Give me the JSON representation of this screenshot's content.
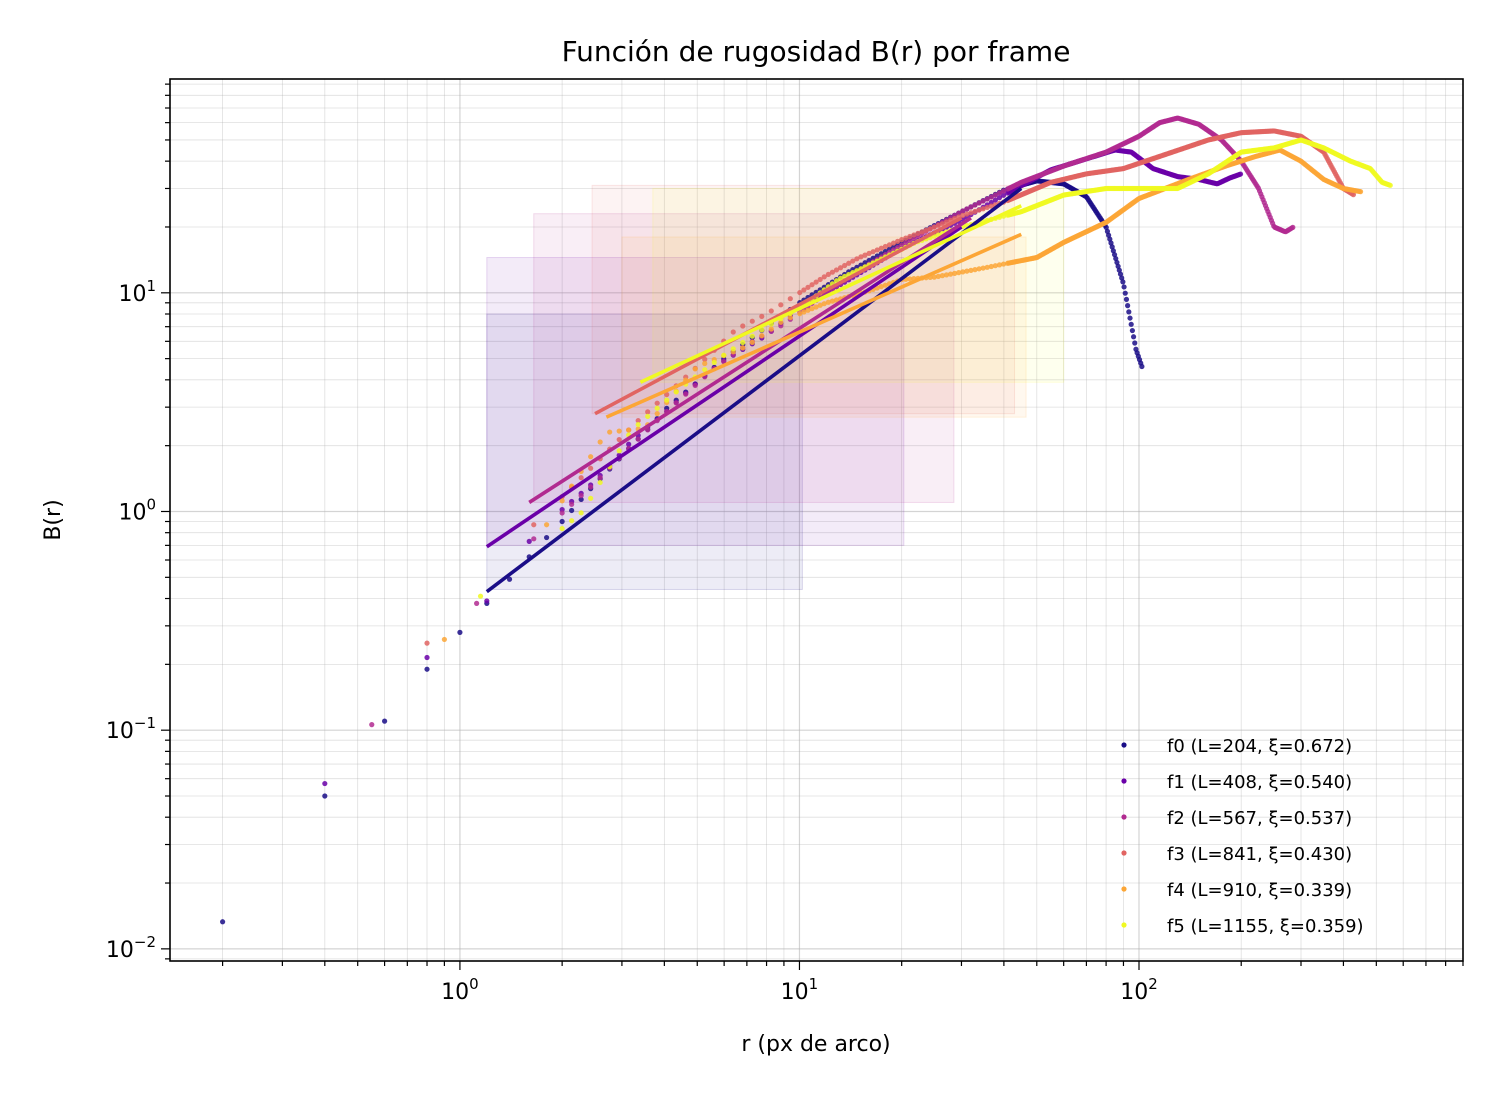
{
  "chart_data": {
    "type": "scatter",
    "title": "Función de rugosidad B(r) por frame",
    "xlabel": "r (px de arco)",
    "ylabel": "B(r)",
    "xscale": "log",
    "yscale": "log",
    "xlim": [
      0.14,
      900
    ],
    "ylim": [
      0.0088,
      95
    ],
    "grid": "major and minor",
    "legend_position": "lower-right",
    "x_ticks": [
      {
        "value": 1,
        "base": "10",
        "exp": "0"
      },
      {
        "value": 10,
        "base": "10",
        "exp": "1"
      },
      {
        "value": 100,
        "base": "10",
        "exp": "2"
      }
    ],
    "y_ticks": [
      {
        "value": 0.01,
        "base": "10",
        "exp": "−2"
      },
      {
        "value": 0.1,
        "base": "10",
        "exp": "−1"
      },
      {
        "value": 1,
        "base": "10",
        "exp": "0"
      },
      {
        "value": 10,
        "base": "10",
        "exp": "1"
      }
    ],
    "series": [
      {
        "name": "f0  (L=204, ξ=0.672)",
        "color": "#1a0d87",
        "points": [
          [
            0.2,
            0.0133
          ],
          [
            0.4,
            0.05
          ],
          [
            0.6,
            0.11
          ],
          [
            0.8,
            0.19
          ],
          [
            1.0,
            0.28
          ],
          [
            1.2,
            0.38
          ],
          [
            1.4,
            0.49
          ],
          [
            1.6,
            0.62
          ],
          [
            1.8,
            0.76
          ],
          [
            2.0,
            0.9
          ],
          [
            2.4,
            1.25
          ],
          [
            2.8,
            1.6
          ],
          [
            3.2,
            2.0
          ],
          [
            3.6,
            2.4
          ],
          [
            4.0,
            2.9
          ],
          [
            5.0,
            3.9
          ],
          [
            6.0,
            5.0
          ],
          [
            8.0,
            7.0
          ],
          [
            10.0,
            9.0
          ],
          [
            14.0,
            12.5
          ],
          [
            20.0,
            17.0
          ],
          [
            30.0,
            23.5
          ],
          [
            40.0,
            29.5
          ],
          [
            50.0,
            32.5
          ],
          [
            60.0,
            31.5
          ],
          [
            70.0,
            27.5
          ],
          [
            80.0,
            20.0
          ],
          [
            90.0,
            11.0
          ],
          [
            98.0,
            5.5
          ],
          [
            102.0,
            4.6
          ]
        ],
        "fit": {
          "x": [
            1.2,
            45
          ],
          "y": [
            0.43,
            30
          ]
        },
        "range_box": {
          "x": [
            1.2,
            10.2
          ],
          "y": [
            0.44,
            8.0
          ]
        }
      },
      {
        "name": "f1  (L=408, ξ=0.540)",
        "color": "#6a00a8",
        "points": [
          [
            0.4,
            0.057
          ],
          [
            0.8,
            0.215
          ],
          [
            1.2,
            0.39
          ],
          [
            1.6,
            0.73
          ],
          [
            2.0,
            1.02
          ],
          [
            2.4,
            1.3
          ],
          [
            2.8,
            1.65
          ],
          [
            3.2,
            2.1
          ],
          [
            4.0,
            2.8
          ],
          [
            5.0,
            3.9
          ],
          [
            6.0,
            4.9
          ],
          [
            8.0,
            6.4
          ],
          [
            10.0,
            8.5
          ],
          [
            14.0,
            11.5
          ],
          [
            20.0,
            16.0
          ],
          [
            30.0,
            21.5
          ],
          [
            40.0,
            28.0
          ],
          [
            55.0,
            36.5
          ],
          [
            70.0,
            41.0
          ],
          [
            85.0,
            45.0
          ],
          [
            95.0,
            44.0
          ],
          [
            110.0,
            37.0
          ],
          [
            130.0,
            34.0
          ],
          [
            150.0,
            33.0
          ],
          [
            170.0,
            31.5
          ],
          [
            185.0,
            33.5
          ],
          [
            200.0,
            35.0
          ]
        ],
        "fit": {
          "x": [
            1.2,
            30
          ],
          "y": [
            0.69,
            20
          ]
        },
        "range_box": {
          "x": [
            1.2,
            20.3
          ],
          "y": [
            0.7,
            14.5
          ]
        }
      },
      {
        "name": "f2  (L=567, ξ=0.537)",
        "color": "#b12a90",
        "points": [
          [
            0.55,
            0.106
          ],
          [
            1.12,
            0.38
          ],
          [
            1.65,
            0.75
          ],
          [
            2.5,
            1.35
          ],
          [
            3.2,
            2.0
          ],
          [
            4.0,
            2.8
          ],
          [
            5.5,
            4.4
          ],
          [
            7.0,
            5.8
          ],
          [
            9.0,
            7.2
          ],
          [
            12.0,
            10.0
          ],
          [
            16.0,
            13.5
          ],
          [
            22.0,
            18.0
          ],
          [
            30.0,
            23.5
          ],
          [
            45.0,
            32.0
          ],
          [
            60.0,
            38.0
          ],
          [
            80.0,
            44.0
          ],
          [
            100.0,
            52.0
          ],
          [
            115.0,
            60.0
          ],
          [
            130.0,
            63.0
          ],
          [
            150.0,
            59.0
          ],
          [
            175.0,
            50.0
          ],
          [
            200.0,
            40.0
          ],
          [
            225.0,
            30.0
          ],
          [
            250.0,
            20.0
          ],
          [
            270.0,
            19.0
          ],
          [
            285.0,
            20.0
          ]
        ],
        "fit": {
          "x": [
            1.6,
            32
          ],
          "y": [
            1.1,
            22
          ]
        },
        "range_box": {
          "x": [
            1.65,
            28.5
          ],
          "y": [
            1.1,
            23.0
          ]
        }
      },
      {
        "name": "f3  (L=841, ξ=0.430)",
        "color": "#e16462",
        "points": [
          [
            0.8,
            0.25
          ],
          [
            1.65,
            0.87
          ],
          [
            2.5,
            1.65
          ],
          [
            3.3,
            2.55
          ],
          [
            5.0,
            4.6
          ],
          [
            6.5,
            6.8
          ],
          [
            8.0,
            8.0
          ],
          [
            10.0,
            10.0
          ],
          [
            12.0,
            12.0
          ],
          [
            15.0,
            14.5
          ],
          [
            20.0,
            17.5
          ],
          [
            25.0,
            20.0
          ],
          [
            30.0,
            22.5
          ],
          [
            40.0,
            26.0
          ],
          [
            55.0,
            32.0
          ],
          [
            70.0,
            35.0
          ],
          [
            90.0,
            37.0
          ],
          [
            120.0,
            43.0
          ],
          [
            160.0,
            50.0
          ],
          [
            200.0,
            54.0
          ],
          [
            250.0,
            55.0
          ],
          [
            300.0,
            52.0
          ],
          [
            350.0,
            44.0
          ],
          [
            400.0,
            30.0
          ],
          [
            430.0,
            28.0
          ]
        ],
        "fit": {
          "x": [
            2.5,
            30
          ],
          "y": [
            2.8,
            22
          ]
        },
        "range_box": {
          "x": [
            2.45,
            43.0
          ],
          "y": [
            2.8,
            31.0
          ]
        }
      },
      {
        "name": "f4  (L=910, ξ=0.339)",
        "color": "#fca636",
        "points": [
          [
            0.9,
            0.26
          ],
          [
            1.8,
            0.87
          ],
          [
            2.7,
            2.3
          ],
          [
            3.5,
            2.4
          ],
          [
            5.0,
            4.6
          ],
          [
            7.0,
            5.7
          ],
          [
            9.0,
            7.5
          ],
          [
            12.0,
            9.0
          ],
          [
            16.0,
            10.2
          ],
          [
            20.0,
            11.5
          ],
          [
            25.0,
            11.8
          ],
          [
            35.0,
            13.0
          ],
          [
            50.0,
            14.5
          ],
          [
            60.0,
            17.0
          ],
          [
            80.0,
            21.0
          ],
          [
            100.0,
            27.0
          ],
          [
            140.0,
            33.0
          ],
          [
            180.0,
            38.0
          ],
          [
            220.0,
            42.0
          ],
          [
            260.0,
            45.0
          ],
          [
            300.0,
            40.0
          ],
          [
            350.0,
            33.0
          ],
          [
            400.0,
            30.0
          ],
          [
            450.0,
            29.0
          ]
        ],
        "fit": {
          "x": [
            2.7,
            45
          ],
          "y": [
            2.7,
            18.5
          ]
        },
        "range_box": {
          "x": [
            3.0,
            46.5
          ],
          "y": [
            2.7,
            18.0
          ]
        }
      },
      {
        "name": "f5  (L=1155, ξ=0.359)",
        "color": "#f0f921",
        "points": [
          [
            1.15,
            0.41
          ],
          [
            2.3,
            1.0
          ],
          [
            3.2,
            2.35
          ],
          [
            4.5,
            3.7
          ],
          [
            6.0,
            5.2
          ],
          [
            8.0,
            7.0
          ],
          [
            10.0,
            8.5
          ],
          [
            13.0,
            11.5
          ],
          [
            17.0,
            14.0
          ],
          [
            22.0,
            17.0
          ],
          [
            30.0,
            20.0
          ],
          [
            45.0,
            23.5
          ],
          [
            60.0,
            28.0
          ],
          [
            80.0,
            30.0
          ],
          [
            100.0,
            30.0
          ],
          [
            130.0,
            30.0
          ],
          [
            160.0,
            35.0
          ],
          [
            200.0,
            44.0
          ],
          [
            250.0,
            46.0
          ],
          [
            300.0,
            50.0
          ],
          [
            350.0,
            46.0
          ],
          [
            420.0,
            40.0
          ],
          [
            480.0,
            37.0
          ],
          [
            520.0,
            32.0
          ],
          [
            550.0,
            31.0
          ]
        ],
        "fit": {
          "x": [
            3.4,
            45
          ],
          "y": [
            3.9,
            25
          ]
        },
        "range_box": {
          "x": [
            3.7,
            60.0
          ],
          "y": [
            3.9,
            30.0
          ]
        }
      }
    ]
  }
}
